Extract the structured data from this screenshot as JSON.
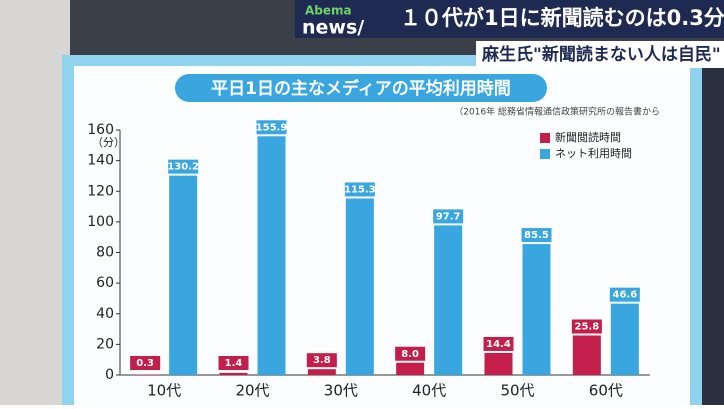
{
  "logo": {
    "line1": "Abema",
    "line2": "news/"
  },
  "headline": "１０代が1日に新聞読むのは0.3分",
  "subheadline": "麻生氏\"新聞読まない人は自民\"",
  "chart_data": {
    "type": "bar",
    "title": "平日1日の主なメディアの平均利用時間",
    "subtitle": "（2016年 総務省情報通信政策研究所の報告書から",
    "y_label": "（分）",
    "categories": [
      "10代",
      "20代",
      "30代",
      "40代",
      "50代",
      "60代"
    ],
    "series": [
      {
        "name": "新聞閲読時間",
        "color": "#c41e4a",
        "values": [
          0.3,
          1.4,
          3.8,
          8,
          14.4,
          25.8
        ],
        "value_labels": [
          "0.3",
          "1.4",
          "3.8",
          "8.0",
          "14.4",
          "25.8"
        ]
      },
      {
        "name": "ネット利用時間",
        "color": "#3aa6e0",
        "values": [
          130.2,
          155.9,
          115.3,
          97.7,
          85.5,
          46.6
        ]
      }
    ],
    "ylim": [
      0,
      160
    ],
    "yticks": [
      0,
      20,
      40,
      60,
      80,
      100,
      120,
      140,
      160
    ],
    "legend": "upper right"
  }
}
